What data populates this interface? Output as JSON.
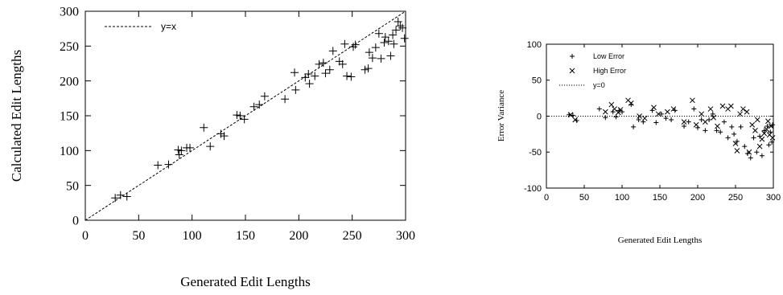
{
  "chart_data": [
    {
      "type": "scatter",
      "xlabel": "Generated Edit Lengths",
      "ylabel": "Calculated Edit Lengths",
      "xlim": [
        0,
        300
      ],
      "ylim": [
        0,
        300
      ],
      "xticks": [
        0,
        50,
        100,
        150,
        200,
        250,
        300
      ],
      "yticks": [
        0,
        50,
        100,
        150,
        200,
        250,
        300
      ],
      "grid": false,
      "legend_position": "top-left",
      "series": [
        {
          "name": "",
          "marker": "plus",
          "points": [
            [
              28,
              32
            ],
            [
              33,
              36
            ],
            [
              39,
              34
            ],
            [
              68,
              79
            ],
            [
              78,
              80
            ],
            [
              87,
              101
            ],
            [
              88,
              94
            ],
            [
              90,
              100
            ],
            [
              95,
              104
            ],
            [
              98,
              104
            ],
            [
              111,
              133
            ],
            [
              117,
              106
            ],
            [
              127,
              124
            ],
            [
              130,
              121
            ],
            [
              142,
              151
            ],
            [
              145,
              150
            ],
            [
              149,
              145
            ],
            [
              158,
              163
            ],
            [
              163,
              166
            ],
            [
              168,
              178
            ],
            [
              187,
              174
            ],
            [
              196,
              212
            ],
            [
              197,
              187
            ],
            [
              206,
              205
            ],
            [
              209,
              210
            ],
            [
              210,
              196
            ],
            [
              215,
              207
            ],
            [
              219,
              224
            ],
            [
              223,
              226
            ],
            [
              225,
              211
            ],
            [
              229,
              216
            ],
            [
              232,
              243
            ],
            [
              238,
              228
            ],
            [
              241,
              224
            ],
            [
              243,
              253
            ],
            [
              245,
              207
            ],
            [
              249,
              206
            ],
            [
              251,
              249
            ],
            [
              253,
              252
            ],
            [
              262,
              216
            ],
            [
              265,
              218
            ],
            [
              266,
              241
            ],
            [
              269,
              233
            ],
            [
              272,
              248
            ],
            [
              275,
              268
            ],
            [
              277,
              232
            ],
            [
              280,
              255
            ],
            [
              281,
              263
            ],
            [
              284,
              257
            ],
            [
              286,
              236
            ],
            [
              288,
              266
            ],
            [
              289,
              253
            ],
            [
              291,
              273
            ],
            [
              293,
              285
            ],
            [
              295,
              279
            ],
            [
              297,
              276
            ],
            [
              299,
              261
            ]
          ]
        },
        {
          "name": "y=x",
          "type": "line",
          "style": "dashed",
          "points": [
            [
              0,
              0
            ],
            [
              300,
              300
            ]
          ]
        }
      ]
    },
    {
      "type": "scatter",
      "xlabel": "Generated Edit Lengths",
      "ylabel": "Error Variance",
      "xlim": [
        0,
        300
      ],
      "ylim": [
        -100,
        100
      ],
      "xticks": [
        0,
        50,
        100,
        150,
        200,
        250,
        300
      ],
      "yticks": [
        -100,
        -50,
        0,
        50,
        100
      ],
      "grid": false,
      "legend_position": "top-left",
      "series": [
        {
          "name": "Low Error",
          "marker": "plus",
          "points": [
            [
              30,
              2
            ],
            [
              35,
              1
            ],
            [
              40,
              -6
            ],
            [
              70,
              10
            ],
            [
              78,
              -2
            ],
            [
              88,
              6
            ],
            [
              92,
              -1
            ],
            [
              96,
              8
            ],
            [
              100,
              6
            ],
            [
              112,
              16
            ],
            [
              115,
              -15
            ],
            [
              122,
              -5
            ],
            [
              128,
              -8
            ],
            [
              140,
              8
            ],
            [
              145,
              -9
            ],
            [
              152,
              3
            ],
            [
              158,
              -3
            ],
            [
              165,
              -5
            ],
            [
              170,
              8
            ],
            [
              182,
              -14
            ],
            [
              188,
              -8
            ],
            [
              195,
              10
            ],
            [
              200,
              -16
            ],
            [
              205,
              -5
            ],
            [
              210,
              -20
            ],
            [
              215,
              -5
            ],
            [
              220,
              3
            ],
            [
              225,
              -20
            ],
            [
              230,
              -22
            ],
            [
              235,
              -8
            ],
            [
              240,
              -30
            ],
            [
              245,
              -15
            ],
            [
              248,
              -25
            ],
            [
              252,
              -35
            ],
            [
              257,
              -15
            ],
            [
              262,
              -42
            ],
            [
              266,
              -52
            ],
            [
              270,
              -58
            ],
            [
              274,
              -30
            ],
            [
              278,
              -50
            ],
            [
              282,
              -28
            ],
            [
              285,
              -55
            ],
            [
              288,
              -20
            ],
            [
              292,
              -14
            ],
            [
              294,
              -40
            ],
            [
              296,
              -22
            ],
            [
              298,
              -36
            ],
            [
              299,
              -12
            ]
          ]
        },
        {
          "name": "High Error",
          "marker": "cross",
          "points": [
            [
              32,
              2
            ],
            [
              38,
              -5
            ],
            [
              78,
              6
            ],
            [
              86,
              16
            ],
            [
              90,
              10
            ],
            [
              95,
              5
            ],
            [
              98,
              9
            ],
            [
              108,
              22
            ],
            [
              112,
              18
            ],
            [
              123,
              0
            ],
            [
              130,
              -3
            ],
            [
              142,
              12
            ],
            [
              148,
              3
            ],
            [
              160,
              6
            ],
            [
              168,
              10
            ],
            [
              182,
              -8
            ],
            [
              193,
              22
            ],
            [
              198,
              -12
            ],
            [
              205,
              3
            ],
            [
              210,
              -8
            ],
            [
              217,
              10
            ],
            [
              221,
              -2
            ],
            [
              226,
              -14
            ],
            [
              233,
              14
            ],
            [
              240,
              10
            ],
            [
              244,
              14
            ],
            [
              250,
              -38
            ],
            [
              252,
              -48
            ],
            [
              256,
              3
            ],
            [
              260,
              10
            ],
            [
              265,
              6
            ],
            [
              268,
              -50
            ],
            [
              272,
              -12
            ],
            [
              276,
              -20
            ],
            [
              279,
              -5
            ],
            [
              282,
              -42
            ],
            [
              285,
              -32
            ],
            [
              288,
              -24
            ],
            [
              291,
              -18
            ],
            [
              293,
              -7
            ],
            [
              295,
              -26
            ],
            [
              297,
              -14
            ],
            [
              299,
              -30
            ]
          ]
        },
        {
          "name": "y=0",
          "type": "line",
          "style": "dotted",
          "points": [
            [
              0,
              0
            ],
            [
              300,
              0
            ]
          ]
        }
      ]
    }
  ]
}
